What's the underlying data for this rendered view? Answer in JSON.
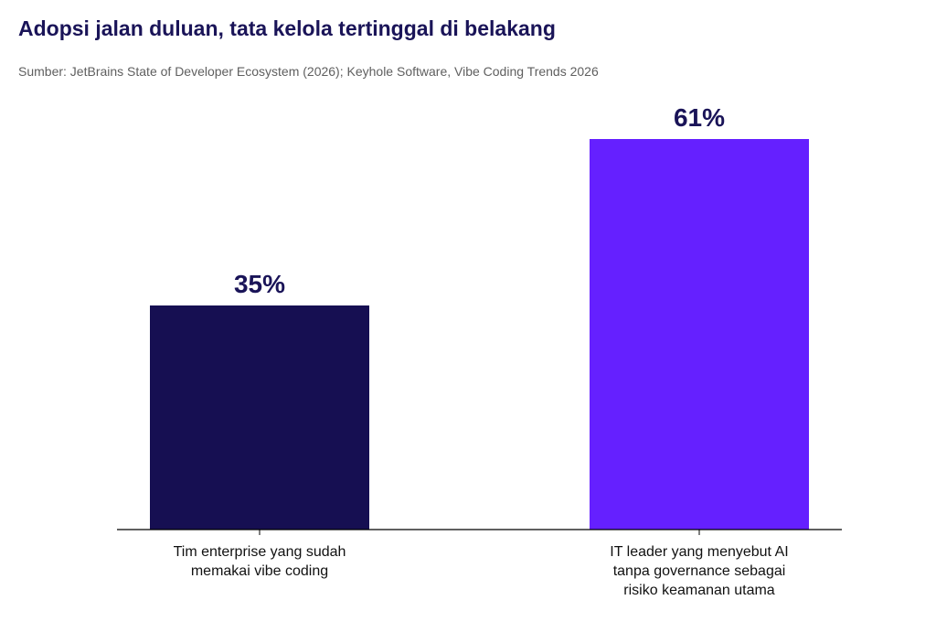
{
  "title": "Adopsi jalan duluan, tata kelola tertinggal di belakang",
  "subtitle": "Sumber: JetBrains State of Developer Ecosystem (2026); Keyhole Software, Vibe Coding Trends 2026",
  "chart_data": {
    "type": "bar",
    "title": "Adopsi jalan duluan, tata kelola tertinggal di belakang",
    "subtitle": "Sumber: JetBrains State of Developer Ecosystem (2026); Keyhole Software, Vibe Coding Trends 2026",
    "categories": [
      [
        "Tim enterprise yang sudah",
        "memakai vibe coding"
      ],
      [
        "IT leader yang menyebut AI",
        "tanpa governance sebagai",
        "risiko keamanan utama"
      ]
    ],
    "values": [
      35,
      61
    ],
    "value_labels": [
      "35%",
      "61%"
    ],
    "bar_colors": [
      "#160f52",
      "#6520ff"
    ],
    "ylim": [
      0,
      70
    ],
    "grid": false,
    "legend": "none",
    "xlabel": "",
    "ylabel": ""
  }
}
